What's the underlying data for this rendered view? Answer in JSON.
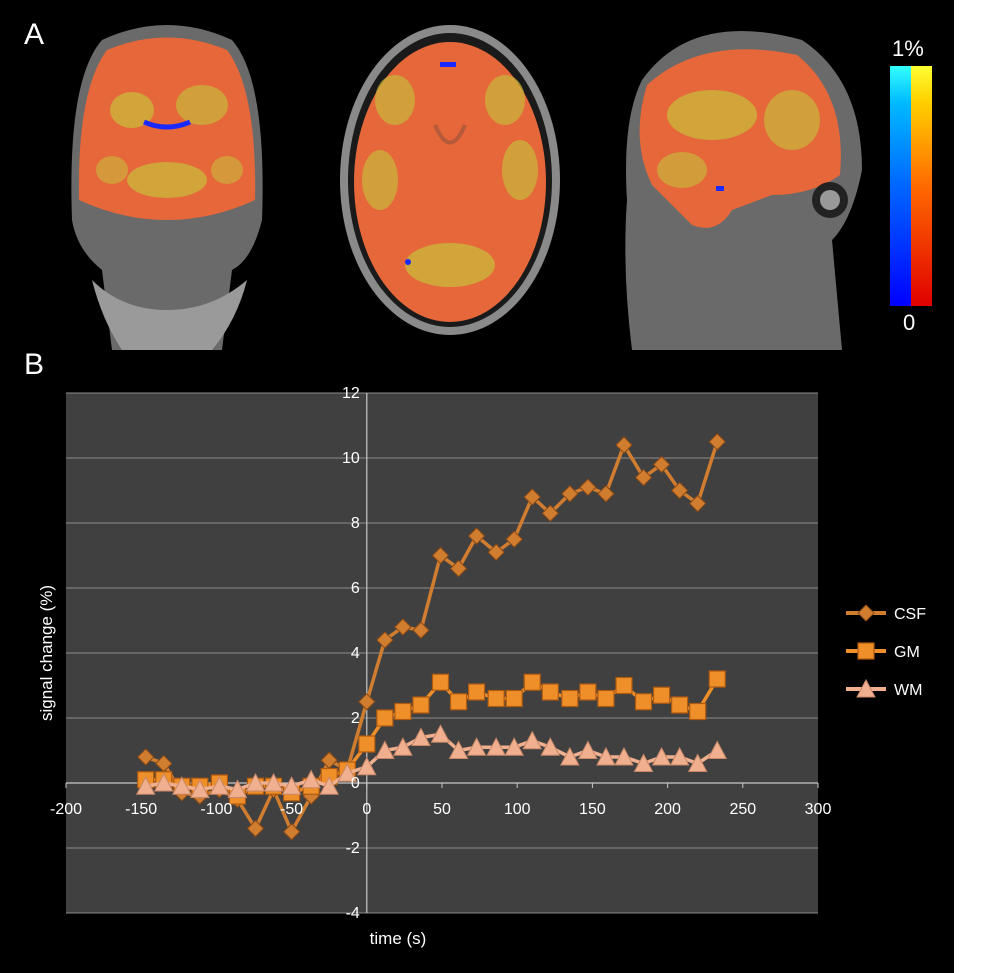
{
  "panel_a": {
    "label": "A",
    "colorbar": {
      "max_label": "1%",
      "min_label": "0",
      "positive_colors": [
        "#e00000",
        "#ff6a00",
        "#ffd000",
        "#ffff33"
      ],
      "negative_colors": [
        "#0000ff",
        "#0066ff",
        "#00bbff",
        "#33ffff"
      ]
    },
    "views": [
      "coronal",
      "axial",
      "sagittal"
    ]
  },
  "panel_b": {
    "label": "B"
  },
  "chart_data": {
    "type": "line",
    "xlabel": "time (s)",
    "ylabel": "signal change (%)",
    "xlim": [
      -200,
      300
    ],
    "ylim": [
      -4,
      12
    ],
    "xticks": [
      -200,
      -150,
      -100,
      -50,
      0,
      50,
      100,
      150,
      200,
      250,
      300
    ],
    "yticks": [
      -4,
      -2,
      0,
      2,
      4,
      6,
      8,
      10,
      12
    ],
    "grid": "horizontal",
    "legend_position": "right",
    "background": "#404040",
    "x": [
      -147,
      -135,
      -123,
      -111,
      -98,
      -86,
      -74,
      -62,
      -50,
      -37,
      -25,
      -13,
      0,
      12,
      24,
      36,
      49,
      61,
      73,
      86,
      98,
      110,
      122,
      135,
      147,
      159,
      171,
      184,
      196,
      208,
      220,
      233
    ],
    "series": [
      {
        "name": "CSF",
        "marker": "diamond",
        "color": "#d07d30",
        "values": [
          0.8,
          0.6,
          -0.3,
          -0.4,
          -0.2,
          -0.5,
          -1.4,
          -0.2,
          -1.5,
          -0.4,
          0.7,
          0.4,
          2.5,
          4.4,
          4.8,
          4.7,
          7.0,
          6.6,
          7.6,
          7.1,
          7.5,
          8.8,
          8.3,
          8.9,
          9.1,
          8.9,
          10.4,
          9.4,
          9.8,
          9.0,
          8.6,
          10.5
        ]
      },
      {
        "name": "GM",
        "marker": "square",
        "color": "#ef8f2a",
        "values": [
          0.1,
          0.1,
          -0.1,
          -0.1,
          0.0,
          -0.4,
          -0.1,
          -0.1,
          -0.3,
          -0.1,
          0.2,
          0.4,
          1.2,
          2.0,
          2.2,
          2.4,
          3.1,
          2.5,
          2.8,
          2.6,
          2.6,
          3.1,
          2.8,
          2.6,
          2.8,
          2.6,
          3.0,
          2.5,
          2.7,
          2.4,
          2.2,
          3.2
        ]
      },
      {
        "name": "WM",
        "marker": "triangle",
        "color": "#f0b090",
        "values": [
          -0.1,
          0.0,
          -0.1,
          -0.2,
          -0.1,
          -0.2,
          0.0,
          0.0,
          -0.1,
          0.1,
          -0.1,
          0.3,
          0.5,
          1.0,
          1.1,
          1.4,
          1.5,
          1.0,
          1.1,
          1.1,
          1.1,
          1.3,
          1.1,
          0.8,
          1.0,
          0.8,
          0.8,
          0.6,
          0.8,
          0.8,
          0.6,
          1.0
        ]
      }
    ]
  }
}
